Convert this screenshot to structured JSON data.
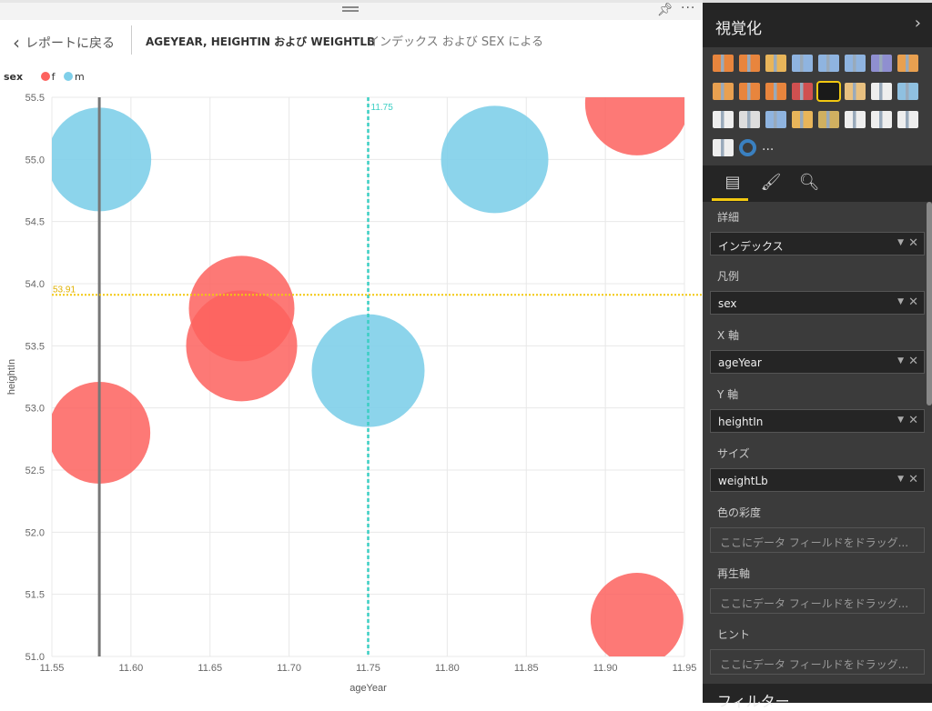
{
  "header": {
    "back_label": "レポートに戻る",
    "title_bold": "AGEYEAR, HEIGHTIN および WEIGHTLB",
    "title_sub": "インデックス および SEX による"
  },
  "legend": {
    "title": "sex",
    "items": [
      {
        "label": "f",
        "color": "#fd625e"
      },
      {
        "label": "m",
        "color": "#7fcfe9"
      }
    ]
  },
  "chart_data": {
    "type": "scatter",
    "xlabel": "ageYear",
    "ylabel": "heightIn",
    "xlim": [
      11.55,
      11.95
    ],
    "ylim": [
      51.0,
      55.5
    ],
    "xticks": [
      "11.55",
      "11.60",
      "11.65",
      "11.70",
      "11.75",
      "11.80",
      "11.85",
      "11.90",
      "11.95"
    ],
    "yticks": [
      "51.0",
      "51.5",
      "52.0",
      "52.5",
      "53.0",
      "53.5",
      "54.0",
      "54.5",
      "55.0",
      "55.5"
    ],
    "points": [
      {
        "sex": "m",
        "x": 11.58,
        "y": 55.0,
        "size": 57
      },
      {
        "sex": "m",
        "x": 11.83,
        "y": 55.0,
        "size": 59
      },
      {
        "sex": "f",
        "x": 11.92,
        "y": 55.45,
        "size": 57
      },
      {
        "sex": "f",
        "x": 11.67,
        "y": 53.8,
        "size": 58
      },
      {
        "sex": "f",
        "x": 11.67,
        "y": 53.5,
        "size": 61
      },
      {
        "sex": "m",
        "x": 11.75,
        "y": 53.3,
        "size": 62
      },
      {
        "sex": "f",
        "x": 11.58,
        "y": 52.8,
        "size": 56
      },
      {
        "sex": "f",
        "x": 11.92,
        "y": 51.3,
        "size": 51
      }
    ],
    "ref_lines": [
      {
        "axis": "x",
        "value": 11.58,
        "color": "#777777",
        "style": "solid",
        "label": ""
      },
      {
        "axis": "x",
        "value": 11.75,
        "color": "#3ccfc4",
        "style": "dashed",
        "label": "11.75"
      },
      {
        "axis": "y",
        "value": 53.91,
        "color": "#f2c811",
        "style": "dotted",
        "label": "53.91"
      }
    ]
  },
  "panel": {
    "title": "視覚化",
    "wells": [
      {
        "label": "詳細",
        "field": "インデックス"
      },
      {
        "label": "凡例",
        "field": "sex"
      },
      {
        "label": "X 軸",
        "field": "ageYear"
      },
      {
        "label": "Y 軸",
        "field": "heightIn"
      },
      {
        "label": "サイズ",
        "field": "weightLb"
      },
      {
        "label": "色の彩度",
        "placeholder": "ここにデータ フィールドをドラッグ..."
      },
      {
        "label": "再生軸",
        "placeholder": "ここにデータ フィールドをドラッグ..."
      },
      {
        "label": "ヒント",
        "placeholder": "ここにデータ フィールドをドラッグ..."
      }
    ],
    "filters": "フィルター",
    "more": "..."
  }
}
